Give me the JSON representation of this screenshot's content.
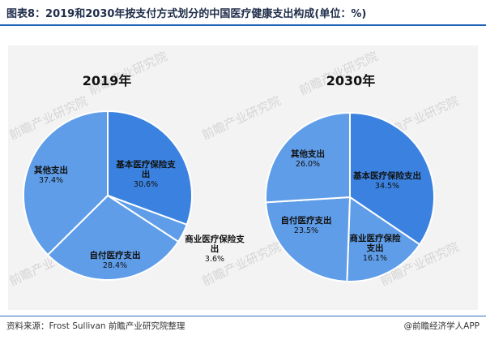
{
  "title": "图表8：2019和2030年按支付方式划分的中国医疗健康支出构成(单位：%)",
  "source": "资料来源：Frost Sullivan 前瞻产业研究院整理",
  "brand": "@前瞻经济学人APP",
  "watermark": "前瞻产业研究院",
  "colors": {
    "dark": "#3b82e0",
    "light": "#5f9de8",
    "stroke": "#ffffff",
    "text": "#111111"
  },
  "chart_data": [
    {
      "type": "pie",
      "title": "2019年",
      "slices": [
        {
          "label": [
            "基本医疗保险支",
            "出"
          ],
          "value": 30.6,
          "display": "30.6%",
          "color": "#3b82e0"
        },
        {
          "label": [
            "商业医疗保险支",
            "出"
          ],
          "value": 3.6,
          "display": "3.6%",
          "color": "#5f9de8"
        },
        {
          "label": [
            "自付医疗支出"
          ],
          "value": 28.4,
          "display": "28.4%",
          "color": "#5f9de8"
        },
        {
          "label": [
            "其他支出"
          ],
          "value": 37.4,
          "display": "37.4%",
          "color": "#5f9de8"
        }
      ]
    },
    {
      "type": "pie",
      "title": "2030年",
      "slices": [
        {
          "label": [
            "基本医疗保险支出"
          ],
          "value": 34.5,
          "display": "34.5%",
          "color": "#3b82e0"
        },
        {
          "label": [
            "商业医疗保险",
            "支出"
          ],
          "value": 16.1,
          "display": "16.1%",
          "color": "#5f9de8"
        },
        {
          "label": [
            "自付医疗支出"
          ],
          "value": 23.5,
          "display": "23.5%",
          "color": "#5f9de8"
        },
        {
          "label": [
            "其他支出"
          ],
          "value": 26.0,
          "display": "26.0%",
          "color": "#5f9de8"
        }
      ]
    }
  ]
}
